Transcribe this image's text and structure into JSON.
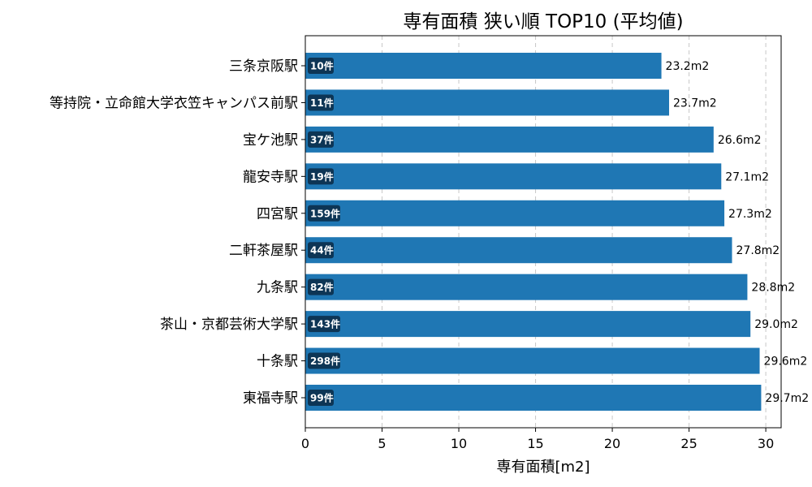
{
  "chart_data": {
    "type": "bar",
    "orientation": "horizontal",
    "title": "専有面積 狭い順 TOP10 (平均値)",
    "xlabel": "専有面積[m2]",
    "ylabel": "",
    "xlim": [
      0,
      31
    ],
    "xticks": [
      0,
      5,
      10,
      15,
      20,
      25,
      30
    ],
    "grid": "x-dashed",
    "bar_color": "#1f77b4",
    "count_badge_color": "#0d3555",
    "categories": [
      "三条京阪駅",
      "等持院・立命館大学衣笠キャンパス前駅",
      "宝ケ池駅",
      "龍安寺駅",
      "四宮駅",
      "二軒茶屋駅",
      "九条駅",
      "茶山・京都芸術大学駅",
      "十条駅",
      "東福寺駅"
    ],
    "values": [
      23.2,
      23.7,
      26.6,
      27.1,
      27.3,
      27.8,
      28.8,
      29.0,
      29.6,
      29.7
    ],
    "value_labels": [
      "23.2m2",
      "23.7m2",
      "26.6m2",
      "27.1m2",
      "27.3m2",
      "27.8m2",
      "28.8m2",
      "29.0m2",
      "29.6m2",
      "29.7m2"
    ],
    "counts": [
      "10件",
      "11件",
      "37件",
      "19件",
      "159件",
      "44件",
      "82件",
      "143件",
      "298件",
      "99件"
    ]
  }
}
